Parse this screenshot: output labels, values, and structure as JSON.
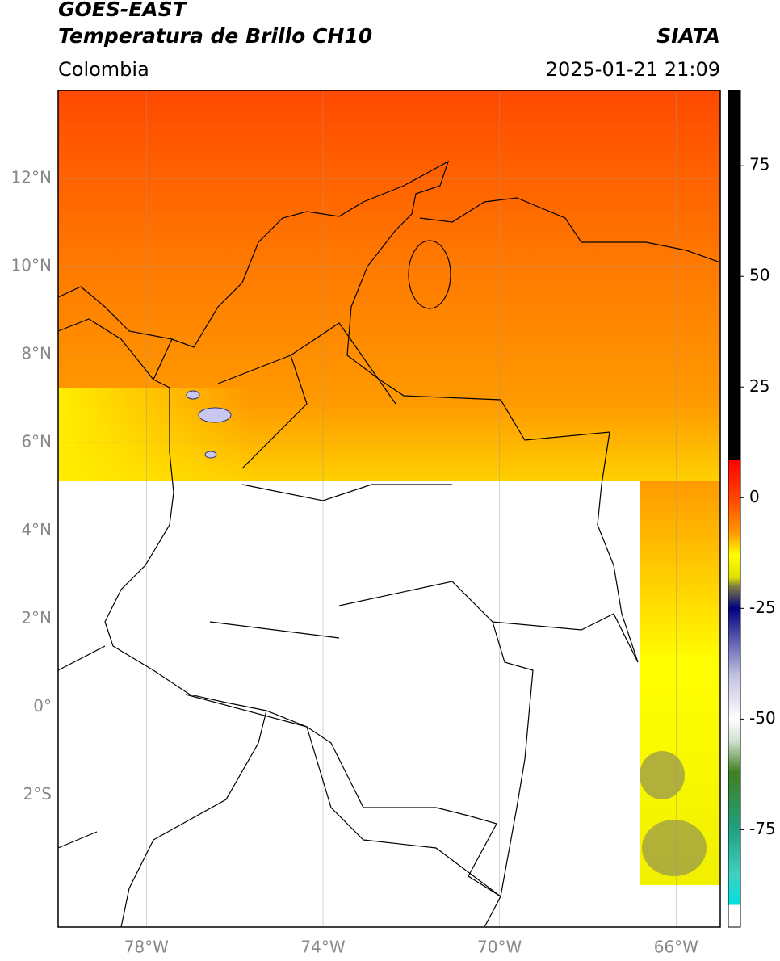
{
  "header": {
    "title": "GOES-EAST",
    "subtitle": "Temperatura de Brillo CH10",
    "source": "SIATA",
    "region": "Colombia",
    "datetime": "2025-01-21 21:09"
  },
  "map": {
    "xlim": [
      -80,
      -65
    ],
    "ylim": [
      -5,
      14
    ],
    "xticks": [
      {
        "value": -78,
        "label": "78°W"
      },
      {
        "value": -74,
        "label": "74°W"
      },
      {
        "value": -70,
        "label": "70°W"
      },
      {
        "value": -66,
        "label": "66°W"
      }
    ],
    "yticks": [
      {
        "value": 12,
        "label": "12°N"
      },
      {
        "value": 10,
        "label": "10°N"
      },
      {
        "value": 8,
        "label": "8°N"
      },
      {
        "value": 6,
        "label": "6°N"
      },
      {
        "value": 4,
        "label": "4°N"
      },
      {
        "value": 2,
        "label": "2°N"
      },
      {
        "value": 0,
        "label": "0°"
      },
      {
        "value": -2,
        "label": "2°S"
      }
    ],
    "grid": true
  },
  "colorbar": {
    "lim": [
      -97,
      92
    ],
    "ticks": [
      75,
      50,
      25,
      0,
      -25,
      -50,
      -75
    ],
    "stops": [
      {
        "value": 92,
        "color": "#000000"
      },
      {
        "value": 8.5,
        "color": "#000000"
      },
      {
        "value": 8.5,
        "color": "#ff0000"
      },
      {
        "value": 0,
        "color": "#ff4400"
      },
      {
        "value": -8,
        "color": "#ff9900"
      },
      {
        "value": -13,
        "color": "#ffff00"
      },
      {
        "value": -18,
        "color": "#e0e000"
      },
      {
        "value": -20,
        "color": "#808040"
      },
      {
        "value": -25,
        "color": "#000080"
      },
      {
        "value": -30,
        "color": "#4040a0"
      },
      {
        "value": -40,
        "color": "#c0c0e0"
      },
      {
        "value": -50,
        "color": "#ffffff"
      },
      {
        "value": -55,
        "color": "#d0e0d0"
      },
      {
        "value": -62,
        "color": "#408020"
      },
      {
        "value": -75,
        "color": "#20a080"
      },
      {
        "value": -85,
        "color": "#40d0c0"
      },
      {
        "value": -92,
        "color": "#00e0e0"
      },
      {
        "value": -92,
        "color": "#ffffff"
      },
      {
        "value": -97,
        "color": "#ffffff"
      }
    ]
  }
}
